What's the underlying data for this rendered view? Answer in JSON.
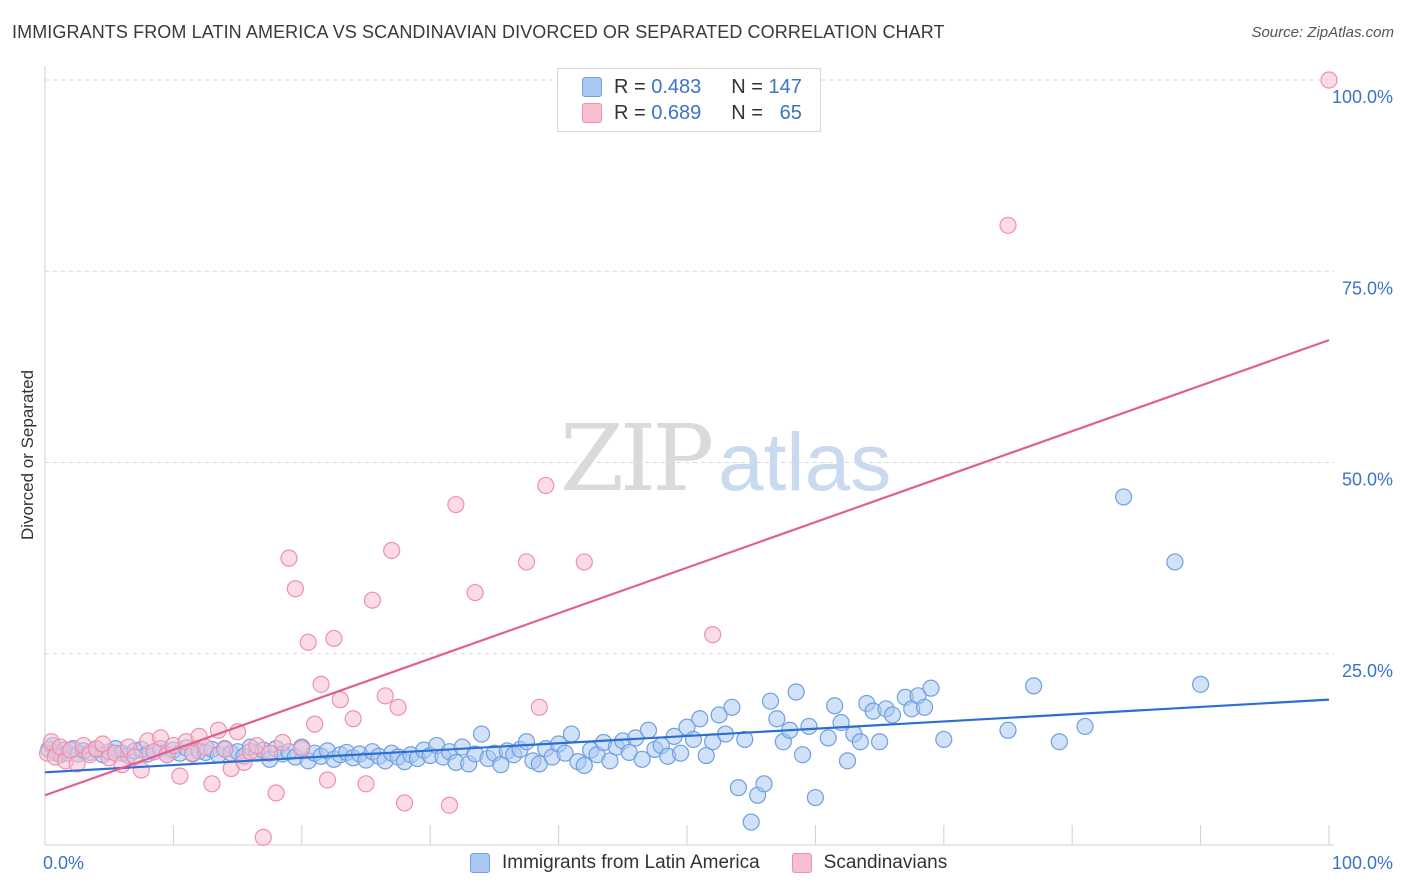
{
  "title": "IMMIGRANTS FROM LATIN AMERICA VS SCANDINAVIAN DIVORCED OR SEPARATED CORRELATION CHART",
  "source": "Source: ZipAtlas.com",
  "watermark": {
    "zip": "ZIP",
    "atlas": "atlas"
  },
  "legend_top": [
    {
      "r_label": "R =",
      "r_value": "0.483",
      "n_label": "N =",
      "n_value": "147",
      "color": "#6fa8e8"
    },
    {
      "r_label": "R =",
      "r_value": "0.689",
      "n_label": "N =",
      "n_value": "65",
      "color": "#f19ab5"
    }
  ],
  "colors": {
    "blue_fill": "#a9c8f2",
    "blue_stroke": "#6fa0e0",
    "blue_line": "#2b6fd0",
    "pink_fill": "#f7bfd0",
    "pink_stroke": "#ee8fb0",
    "pink_line": "#e0608e",
    "tick_label": "#3b73c8",
    "grid": "#d9d9d9"
  },
  "chart_data": {
    "type": "scatter",
    "title": "IMMIGRANTS FROM LATIN AMERICA VS SCANDINAVIAN DIVORCED OR SEPARATED CORRELATION CHART",
    "xlabel": "",
    "ylabel": "Divorced or Separated",
    "xlim": [
      0,
      100
    ],
    "ylim": [
      0,
      100
    ],
    "x_tick_labels": [
      "0.0%",
      "100.0%"
    ],
    "y_ticks": [
      25,
      50,
      75,
      100
    ],
    "y_tick_labels": [
      "25.0%",
      "50.0%",
      "75.0%",
      "100.0%"
    ],
    "grid": "horizontal dashed",
    "legend_position": "bottom",
    "series": [
      {
        "name": "Immigrants from Latin America",
        "trend": {
          "x": [
            0,
            100
          ],
          "y": [
            9.5,
            19.0
          ]
        },
        "points": [
          [
            0.3,
            12.5
          ],
          [
            0.6,
            13.0
          ],
          [
            0.9,
            12.0
          ],
          [
            1.2,
            11.8
          ],
          [
            1.5,
            12.4
          ],
          [
            1.8,
            12.0
          ],
          [
            2.2,
            12.6
          ],
          [
            2.6,
            11.9
          ],
          [
            3.0,
            12.3
          ],
          [
            3.5,
            12.1
          ],
          [
            4.0,
            12.5
          ],
          [
            4.5,
            11.8
          ],
          [
            5.0,
            12.2
          ],
          [
            5.5,
            12.6
          ],
          [
            6.0,
            12.0
          ],
          [
            6.5,
            11.7
          ],
          [
            7.0,
            12.3
          ],
          [
            7.5,
            12.5
          ],
          [
            8.0,
            11.9
          ],
          [
            8.5,
            12.2
          ],
          [
            9.0,
            12.6
          ],
          [
            9.5,
            11.8
          ],
          [
            10.0,
            12.4
          ],
          [
            10.5,
            12.0
          ],
          [
            11.0,
            12.7
          ],
          [
            11.5,
            11.9
          ],
          [
            12.0,
            12.3
          ],
          [
            12.5,
            12.1
          ],
          [
            13.0,
            12.5
          ],
          [
            13.5,
            11.8
          ],
          [
            14.0,
            12.6
          ],
          [
            14.5,
            12.0
          ],
          [
            15.0,
            12.2
          ],
          [
            15.5,
            11.6
          ],
          [
            16.0,
            12.8
          ],
          [
            16.5,
            12.0
          ],
          [
            17.0,
            12.4
          ],
          [
            17.5,
            11.2
          ],
          [
            18.0,
            12.6
          ],
          [
            18.5,
            11.9
          ],
          [
            19.0,
            12.2
          ],
          [
            19.5,
            11.5
          ],
          [
            20.0,
            12.8
          ],
          [
            20.5,
            11.0
          ],
          [
            21.0,
            12.0
          ],
          [
            21.5,
            11.6
          ],
          [
            22.0,
            12.3
          ],
          [
            22.5,
            11.2
          ],
          [
            23.0,
            11.8
          ],
          [
            23.5,
            12.1
          ],
          [
            24.0,
            11.4
          ],
          [
            24.5,
            11.9
          ],
          [
            25.0,
            11.1
          ],
          [
            25.5,
            12.2
          ],
          [
            26.0,
            11.6
          ],
          [
            26.5,
            11.0
          ],
          [
            27.0,
            12.0
          ],
          [
            27.5,
            11.5
          ],
          [
            28.0,
            10.9
          ],
          [
            28.5,
            11.8
          ],
          [
            29.0,
            11.3
          ],
          [
            29.5,
            12.4
          ],
          [
            30.0,
            11.7
          ],
          [
            30.5,
            13.0
          ],
          [
            31.0,
            11.5
          ],
          [
            31.5,
            12.2
          ],
          [
            32.0,
            10.8
          ],
          [
            32.5,
            12.8
          ],
          [
            33.0,
            10.6
          ],
          [
            33.5,
            11.9
          ],
          [
            34.0,
            14.5
          ],
          [
            34.5,
            11.3
          ],
          [
            35.0,
            12.0
          ],
          [
            35.5,
            10.5
          ],
          [
            36.0,
            12.3
          ],
          [
            36.5,
            11.8
          ],
          [
            37.0,
            12.5
          ],
          [
            37.5,
            13.5
          ],
          [
            38.0,
            11.0
          ],
          [
            38.5,
            10.6
          ],
          [
            39.0,
            12.6
          ],
          [
            39.5,
            11.5
          ],
          [
            40.0,
            13.2
          ],
          [
            40.5,
            12.0
          ],
          [
            41.0,
            14.5
          ],
          [
            41.5,
            10.9
          ],
          [
            42.0,
            10.4
          ],
          [
            42.5,
            12.4
          ],
          [
            43.0,
            11.8
          ],
          [
            43.5,
            13.4
          ],
          [
            44.0,
            11.0
          ],
          [
            44.5,
            12.8
          ],
          [
            45.0,
            13.6
          ],
          [
            45.5,
            12.1
          ],
          [
            46.0,
            14.0
          ],
          [
            46.5,
            11.2
          ],
          [
            47.0,
            15.0
          ],
          [
            47.5,
            12.5
          ],
          [
            48.0,
            13.0
          ],
          [
            48.5,
            11.6
          ],
          [
            49.0,
            14.2
          ],
          [
            49.5,
            12.0
          ],
          [
            50.0,
            15.4
          ],
          [
            50.5,
            13.8
          ],
          [
            51.0,
            16.5
          ],
          [
            51.5,
            11.7
          ],
          [
            52.0,
            13.5
          ],
          [
            52.5,
            17.0
          ],
          [
            53.0,
            14.5
          ],
          [
            53.5,
            18.0
          ],
          [
            54.0,
            7.5
          ],
          [
            54.5,
            13.8
          ],
          [
            55.0,
            3.0
          ],
          [
            55.5,
            6.5
          ],
          [
            56.0,
            8.0
          ],
          [
            56.5,
            18.8
          ],
          [
            57.0,
            16.5
          ],
          [
            57.5,
            13.5
          ],
          [
            58.0,
            15.0
          ],
          [
            58.5,
            20.0
          ],
          [
            59.0,
            11.8
          ],
          [
            59.5,
            15.5
          ],
          [
            60.0,
            6.2
          ],
          [
            61.0,
            14.0
          ],
          [
            61.5,
            18.2
          ],
          [
            62.0,
            16.0
          ],
          [
            62.5,
            11.0
          ],
          [
            63.0,
            14.5
          ],
          [
            63.5,
            13.5
          ],
          [
            64.0,
            18.5
          ],
          [
            64.5,
            17.5
          ],
          [
            65.0,
            13.5
          ],
          [
            65.5,
            17.8
          ],
          [
            66.0,
            17.0
          ],
          [
            67.0,
            19.3
          ],
          [
            67.5,
            17.8
          ],
          [
            68.0,
            19.5
          ],
          [
            68.5,
            18.0
          ],
          [
            69.0,
            20.5
          ],
          [
            70.0,
            13.8
          ],
          [
            75.0,
            15.0
          ],
          [
            77.0,
            20.8
          ],
          [
            79.0,
            13.5
          ],
          [
            81.0,
            15.5
          ],
          [
            84.0,
            45.5
          ],
          [
            88.0,
            37.0
          ],
          [
            90.0,
            21.0
          ]
        ]
      },
      {
        "name": "Scandinavians",
        "trend": {
          "x": [
            0,
            100
          ],
          "y": [
            6.5,
            66.0
          ]
        },
        "points": [
          [
            0.2,
            12.0
          ],
          [
            0.5,
            13.5
          ],
          [
            0.8,
            11.5
          ],
          [
            1.2,
            12.8
          ],
          [
            1.6,
            11.0
          ],
          [
            2.0,
            12.4
          ],
          [
            2.5,
            10.6
          ],
          [
            3.0,
            13.0
          ],
          [
            3.5,
            11.8
          ],
          [
            4.0,
            12.6
          ],
          [
            4.5,
            13.2
          ],
          [
            5.0,
            11.4
          ],
          [
            5.5,
            12.0
          ],
          [
            6.0,
            10.5
          ],
          [
            6.5,
            12.8
          ],
          [
            7.0,
            11.5
          ],
          [
            7.5,
            9.8
          ],
          [
            8.0,
            13.6
          ],
          [
            8.5,
            12.2
          ],
          [
            9.0,
            14.0
          ],
          [
            9.5,
            11.8
          ],
          [
            10.0,
            13.0
          ],
          [
            10.5,
            9.0
          ],
          [
            11.0,
            13.5
          ],
          [
            11.5,
            12.0
          ],
          [
            12.0,
            14.2
          ],
          [
            12.5,
            12.8
          ],
          [
            13.0,
            8.0
          ],
          [
            13.5,
            15.0
          ],
          [
            14.0,
            12.5
          ],
          [
            14.5,
            10.0
          ],
          [
            15.0,
            14.8
          ],
          [
            15.5,
            10.8
          ],
          [
            16.0,
            12.2
          ],
          [
            16.5,
            13.0
          ],
          [
            17.0,
            1.0
          ],
          [
            17.5,
            12.0
          ],
          [
            18.0,
            6.8
          ],
          [
            18.5,
            13.4
          ],
          [
            19.0,
            37.5
          ],
          [
            19.5,
            33.5
          ],
          [
            20.0,
            12.6
          ],
          [
            20.5,
            26.5
          ],
          [
            21.0,
            15.8
          ],
          [
            21.5,
            21.0
          ],
          [
            22.0,
            8.5
          ],
          [
            22.5,
            27.0
          ],
          [
            23.0,
            19.0
          ],
          [
            24.0,
            16.5
          ],
          [
            25.0,
            8.0
          ],
          [
            25.5,
            32.0
          ],
          [
            26.5,
            19.5
          ],
          [
            27.0,
            38.5
          ],
          [
            27.5,
            18.0
          ],
          [
            28.0,
            5.5
          ],
          [
            31.5,
            5.2
          ],
          [
            32.0,
            44.5
          ],
          [
            33.5,
            33.0
          ],
          [
            37.5,
            37.0
          ],
          [
            38.5,
            18.0
          ],
          [
            39.0,
            47.0
          ],
          [
            42.0,
            37.0
          ],
          [
            52.0,
            27.5
          ],
          [
            75.0,
            81.0
          ],
          [
            100.0,
            100.0
          ]
        ]
      }
    ]
  },
  "bottom_legend": [
    "Immigrants from Latin America",
    "Scandinavians"
  ]
}
